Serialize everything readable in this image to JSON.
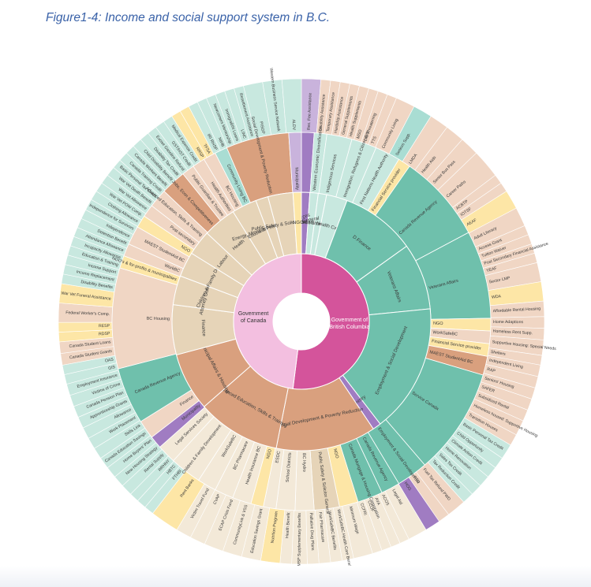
{
  "title": "Figure1-4: Income and social support system in B.C.",
  "colors": {
    "canada": "#f3bfe0",
    "bc": "#d4549b",
    "teal": "#6fc0ac",
    "teal_light": "#c8e8df",
    "peach": "#d9a07e",
    "peach_light": "#f0d6c4",
    "tan": "#e6d4b8",
    "tan_light": "#f3e9d8",
    "yellow": "#fde6a6",
    "purple": "#a07cc2",
    "purple_light": "#c9b3dc",
    "light_teal_outer": "#a9ddd3"
  },
  "center": {
    "canada": {
      "label": "Government of Canada",
      "value": 0.48
    },
    "bc": {
      "label": "Government of British Columbia",
      "value": 0.52
    }
  },
  "ministries": [
    {
      "label": "Municipal",
      "side": "canada",
      "value": 1.0,
      "color": "purple"
    },
    {
      "label": "National Defence",
      "side": "canada",
      "value": 1.0,
      "color": "teal_light"
    },
    {
      "label": "Royal Military College",
      "side": "canada",
      "value": 1.0,
      "color": "teal_light"
    },
    {
      "label": "Health Care",
      "side": "canada",
      "value": 2.5,
      "color": "teal_light"
    },
    {
      "label": "D.Finance",
      "side": "canada",
      "value": 9.0,
      "color": "teal"
    },
    {
      "label": "Veterans Affairs",
      "side": "canada",
      "value": 8.0,
      "color": "teal"
    },
    {
      "label": "Employment & Social Development",
      "side": "canada",
      "value": 15.5,
      "color": "teal"
    },
    {
      "label": "Ministry",
      "side": "bc",
      "value": 1.0,
      "color": "purple"
    },
    {
      "label": "Social Development & Poverty Reduction",
      "side": "bc",
      "value": 12.0,
      "color": "peach"
    },
    {
      "label": "Advanced Education, Skills & Training",
      "side": "bc",
      "value": 10.0,
      "color": "peach"
    },
    {
      "label": "Municipal Affairs & Housing",
      "side": "bc",
      "value": 7.0,
      "color": "peach"
    },
    {
      "label": "Finance",
      "side": "bc",
      "value": 6.0,
      "color": "tan"
    },
    {
      "label": "Attorney General",
      "side": "bc",
      "value": 3.5,
      "color": "tan"
    },
    {
      "label": "Children & Family Development",
      "side": "bc",
      "value": 3.0,
      "color": "tan"
    },
    {
      "label": "Labour",
      "side": "bc",
      "value": 3.0,
      "color": "tan"
    },
    {
      "label": "Health",
      "side": "bc",
      "value": 4.0,
      "color": "tan"
    },
    {
      "label": "Education",
      "side": "bc",
      "value": 3.0,
      "color": "tan"
    },
    {
      "label": "Energy, Mines & Petroleum Resources",
      "side": "bc",
      "value": 1.5,
      "color": "tan"
    },
    {
      "label": "Public Safety & Solicitor General",
      "side": "bc",
      "value": 3.0,
      "color": "tan"
    },
    {
      "label": "NGO",
      "side": "bc",
      "value": 1.0,
      "color": "yellow"
    }
  ],
  "agencies": [
    {
      "label": "",
      "value": 1.0,
      "color": "purple"
    },
    {
      "label": "Western Economic Diversification",
      "value": 1.0,
      "color": "teal_light"
    },
    {
      "label": "Indigenous Services",
      "value": 2.0,
      "color": "teal_light"
    },
    {
      "label": "Immigration, Refugees & Citizenship",
      "value": 2.0,
      "color": "teal_light"
    },
    {
      "label": "First Nations Health Authority",
      "value": 2.0,
      "color": "teal_light"
    },
    {
      "label": "Financial Service provider",
      "value": 1.0,
      "color": "yellow"
    },
    {
      "label": "Canada Revenue Agency",
      "value": 7.0,
      "color": "teal"
    },
    {
      "label": "Veterans Affairs",
      "value": 7.0,
      "color": "teal"
    },
    {
      "label": "NGO",
      "value": 1.0,
      "color": "yellow"
    },
    {
      "label": "WorkSafeBC",
      "value": 1.0,
      "color": "peach_light"
    },
    {
      "label": "Financial Service provider",
      "value": 1.0,
      "color": "yellow"
    },
    {
      "label": "MAEST StudentAid BC",
      "value": 1.5,
      "color": "peach"
    },
    {
      "label": "Service Canada",
      "value": 8.5,
      "color": "teal"
    },
    {
      "label": "Employment & Social Development",
      "value": 2.5,
      "color": "teal"
    },
    {
      "label": "Canada Revenue Agency",
      "value": 1.5,
      "color": "teal"
    },
    {
      "label": "Canada Mortgage & Housing Corporation",
      "value": 2.0,
      "color": "teal"
    },
    {
      "label": "NGO",
      "value": 1.5,
      "color": "yellow"
    },
    {
      "label": "Public Safety & Solicitor General",
      "value": 2.0,
      "color": "tan"
    },
    {
      "label": "BC Hydro",
      "value": 1.5,
      "color": "tan_light"
    },
    {
      "label": "School Districts",
      "value": 1.5,
      "color": "tan_light"
    },
    {
      "label": "ESDC",
      "value": 1.0,
      "color": "tan_light"
    },
    {
      "label": "NGO",
      "value": 1.0,
      "color": "yellow"
    },
    {
      "label": "Health Insurance BC",
      "value": 1.5,
      "color": "tan_light"
    },
    {
      "label": "BC Pharmacare",
      "value": 1.5,
      "color": "tan_light"
    },
    {
      "label": "WorkSafeBC",
      "value": 1.5,
      "color": "tan_light"
    },
    {
      "label": "Children & Family Development",
      "value": 2.5,
      "color": "tan_light"
    },
    {
      "label": "Legal Services Society",
      "value": 1.5,
      "color": "tan_light"
    },
    {
      "label": "Municipality",
      "value": 1.0,
      "color": "purple"
    },
    {
      "label": "Finance",
      "value": 1.5,
      "color": "peach_light"
    },
    {
      "label": "Canada Revenue Agency",
      "value": 4.5,
      "color": "teal"
    },
    {
      "label": "BC Housing",
      "value": 8.0,
      "color": "peach_light"
    },
    {
      "label": "NGO's & for-profits & municipalities",
      "value": 1.0,
      "color": "yellow"
    },
    {
      "label": "WorkBC",
      "value": 1.0,
      "color": "peach_light"
    },
    {
      "label": "MAEST StudentAid BC",
      "value": 1.5,
      "color": "peach_light"
    },
    {
      "label": "NGO",
      "value": 1.0,
      "color": "yellow"
    },
    {
      "label": "Post-secondary",
      "value": 1.0,
      "color": "peach_light"
    },
    {
      "label": "Advanced Education, Skills & Training",
      "value": 1.5,
      "color": "peach_light"
    },
    {
      "label": "Jobs, Econ & Competitiveness",
      "value": 2.0,
      "color": "peach"
    },
    {
      "label": "Public Guardian & Trustee",
      "value": 1.0,
      "color": "peach_light"
    },
    {
      "label": "Health Authorities",
      "value": 1.0,
      "color": "peach_light"
    },
    {
      "label": "BC Housing",
      "value": 1.0,
      "color": "peach_light"
    },
    {
      "label": "Community Living BC",
      "value": 1.0,
      "color": "light_teal_outer"
    },
    {
      "label": "Social Development & Poverty Reduction",
      "value": 5.0,
      "color": "peach"
    },
    {
      "label": "Municipality",
      "value": 1.0,
      "color": "purple_light"
    }
  ],
  "programs": [
    {
      "label": "Res. Fee Assistance",
      "value": 1.0,
      "color": "purple_light"
    },
    {
      "label": "Disability Assistance",
      "value": 0.5,
      "color": "peach_light"
    },
    {
      "label": "Temporary Assistance",
      "value": 0.5,
      "color": "peach_light"
    },
    {
      "label": "Hardship Assistance",
      "value": 0.5,
      "color": "peach_light"
    },
    {
      "label": "General Supplements",
      "value": 0.5,
      "color": "peach_light"
    },
    {
      "label": "Health Supplements",
      "value": 0.5,
      "color": "peach_light"
    },
    {
      "label": "MSO",
      "value": 0.5,
      "color": "peach_light"
    },
    {
      "label": "Life Threatening",
      "value": 0.5,
      "color": "peach_light"
    },
    {
      "label": "TTS",
      "value": 0.5,
      "color": "peach_light"
    },
    {
      "label": "Community Living",
      "value": 1.0,
      "color": "peach_light"
    },
    {
      "label": "Seniors Supp.",
      "value": 1.0,
      "color": "light_teal_outer"
    },
    {
      "label": "LMDA",
      "value": 1.0,
      "color": "peach_light"
    },
    {
      "label": "Health Aids",
      "value": 1.0,
      "color": "peach_light"
    },
    {
      "label": "Senior Bus Pass",
      "value": 1.0,
      "color": "peach_light"
    },
    {
      "label": "Career Paths",
      "value": 1.5,
      "color": "peach_light"
    },
    {
      "label": "ACBTP",
      "value": 0.5,
      "color": "peach_light"
    },
    {
      "label": "IOTSF",
      "value": 0.5,
      "color": "peach_light"
    },
    {
      "label": "AEAF",
      "value": 1.0,
      "color": "yellow"
    },
    {
      "label": "Adult Literacy",
      "value": 1.0,
      "color": "peach_light"
    },
    {
      "label": "Access Grant",
      "value": 0.5,
      "color": "peach_light"
    },
    {
      "label": "Tuition Waiver",
      "value": 0.5,
      "color": "peach_light"
    },
    {
      "label": "Post Secondary Financial Assistance",
      "value": 0.5,
      "color": "peach_light"
    },
    {
      "label": "YEAF",
      "value": 0.5,
      "color": "peach_light"
    },
    {
      "label": "Sector LMP",
      "value": 1.0,
      "color": "peach_light"
    },
    {
      "label": "WDA",
      "value": 1.0,
      "color": "yellow"
    },
    {
      "label": "Affordable Rental Housing",
      "value": 0.8,
      "color": "peach_light"
    },
    {
      "label": "Home Adaptions",
      "value": 0.6,
      "color": "peach_light"
    },
    {
      "label": "Homeless Rent Supp.",
      "value": 0.6,
      "color": "peach_light"
    },
    {
      "label": "Supportive Housing: Special Needs",
      "value": 0.8,
      "color": "peach_light"
    },
    {
      "label": "Shelters",
      "value": 0.5,
      "color": "peach_light"
    },
    {
      "label": "Independent Living",
      "value": 0.6,
      "color": "peach_light"
    },
    {
      "label": "RAP",
      "value": 0.6,
      "color": "peach_light"
    },
    {
      "label": "Seniors' Housing",
      "value": 0.6,
      "color": "peach_light"
    },
    {
      "label": "SAFER",
      "value": 0.6,
      "color": "peach_light"
    },
    {
      "label": "Subsidized Rental",
      "value": 0.6,
      "color": "peach_light"
    },
    {
      "label": "Homeless housed: Supportive Housing",
      "value": 0.8,
      "color": "peach_light"
    },
    {
      "label": "Transition Houses",
      "value": 0.6,
      "color": "peach_light"
    },
    {
      "label": "Basic Personal Tax Credit",
      "value": 0.8,
      "color": "teal_light"
    },
    {
      "label": "Child Opportunity",
      "value": 0.6,
      "color": "teal_light"
    },
    {
      "label": "Climate Action Credit",
      "value": 0.6,
      "color": "teal_light"
    },
    {
      "label": "Home Renovation",
      "value": 0.6,
      "color": "teal_light"
    },
    {
      "label": "Sales Tax Credit",
      "value": 0.6,
      "color": "teal_light"
    },
    {
      "label": "Tax Reduction Credit",
      "value": 0.6,
      "color": "teal_light"
    },
    {
      "label": "Fuel Tax Refund PWD",
      "value": 1.0,
      "color": "peach_light"
    },
    {
      "label": "PTD",
      "value": 0.6,
      "color": "peach_light"
    },
    {
      "label": "HOG",
      "value": 0.8,
      "color": "purple"
    },
    {
      "label": "Legal Aid",
      "value": 1.0,
      "color": "tan_light"
    },
    {
      "label": "ACOS",
      "value": 0.5,
      "color": "tan_light"
    },
    {
      "label": "AYA",
      "value": 0.5,
      "color": "tan_light"
    },
    {
      "label": "CCOF",
      "value": 0.5,
      "color": "tan_light"
    },
    {
      "label": "CCFRI",
      "value": 0.5,
      "color": "tan_light"
    },
    {
      "label": "Minimum Wage",
      "value": 1.0,
      "color": "tan_light"
    },
    {
      "label": "WorkSafeBC Health Care Benefit",
      "value": 0.6,
      "color": "tan_light"
    },
    {
      "label": "WorkSafeBC Benefits",
      "value": 0.6,
      "color": "tan_light"
    },
    {
      "label": "Fair Pharmacare",
      "value": 0.6,
      "color": "tan_light"
    },
    {
      "label": "Palliative Drug Plans",
      "value": 0.6,
      "color": "tan_light"
    },
    {
      "label": "MSP Supplementary Benefits",
      "value": 0.8,
      "color": "tan_light"
    },
    {
      "label": "Health Benefit",
      "value": 0.6,
      "color": "tan_light"
    },
    {
      "label": "Nutrition Program",
      "value": 1.0,
      "color": "yellow"
    },
    {
      "label": "Education Savings Grant",
      "value": 1.0,
      "color": "tan_light"
    },
    {
      "label": "CommunityLink & VSS",
      "value": 1.0,
      "color": "tan_light"
    },
    {
      "label": "ECAP Crisis Fund",
      "value": 1.0,
      "color": "tan_light"
    },
    {
      "label": "CVAP",
      "value": 0.8,
      "color": "tan_light"
    },
    {
      "label": "Victim Travel Fund",
      "value": 0.8,
      "color": "tan_light"
    },
    {
      "label": "Rent Banks",
      "value": 1.5,
      "color": "yellow"
    },
    {
      "label": "FTHBI",
      "value": 0.5,
      "color": "teal_light"
    },
    {
      "label": "HBTC",
      "value": 0.5,
      "color": "teal_light"
    },
    {
      "label": "RRHNY",
      "value": 0.5,
      "color": "teal_light"
    },
    {
      "label": "Rental Supply",
      "value": 0.6,
      "color": "teal_light"
    },
    {
      "label": "New Housing Strategy",
      "value": 0.6,
      "color": "teal_light"
    },
    {
      "label": "Home Buyers' Plan",
      "value": 0.6,
      "color": "teal_light"
    },
    {
      "label": "Canada Education Savings",
      "value": 0.6,
      "color": "teal_light"
    },
    {
      "label": "Skills Link",
      "value": 0.6,
      "color": "teal_light"
    },
    {
      "label": "Work Placement",
      "value": 0.6,
      "color": "teal_light"
    },
    {
      "label": "Allowance",
      "value": 0.6,
      "color": "teal_light"
    },
    {
      "label": "Apprenticeship Grants",
      "value": 0.6,
      "color": "teal_light"
    },
    {
      "label": "Canada Pension Plan",
      "value": 0.6,
      "color": "teal_light"
    },
    {
      "label": "Victims of Crime",
      "value": 0.6,
      "color": "teal_light"
    },
    {
      "label": "Employment Insurance",
      "value": 0.6,
      "color": "teal_light"
    },
    {
      "label": "GIS",
      "value": 0.5,
      "color": "teal_light"
    },
    {
      "label": "OAS",
      "value": 0.5,
      "color": "teal_light"
    },
    {
      "label": "Canada Student Grants",
      "value": 0.6,
      "color": "peach_light"
    },
    {
      "label": "Canada Student Loans",
      "value": 0.6,
      "color": "peach_light"
    },
    {
      "label": "RDSP",
      "value": 0.5,
      "color": "yellow"
    },
    {
      "label": "RESP",
      "value": 0.5,
      "color": "yellow"
    },
    {
      "label": "Federal Worker's Comp.",
      "value": 1.0,
      "color": "peach_light"
    },
    {
      "label": "War Vet Funeral Assistance",
      "value": 1.0,
      "color": "yellow"
    },
    {
      "label": "Disability Benefits",
      "value": 0.5,
      "color": "teal_light"
    },
    {
      "label": "Income Replacement",
      "value": 0.5,
      "color": "teal_light"
    },
    {
      "label": "Income Support",
      "value": 0.5,
      "color": "teal_light"
    },
    {
      "label": "Education & Training",
      "value": 0.5,
      "color": "teal_light"
    },
    {
      "label": "Incapacity Allowance",
      "value": 0.5,
      "color": "teal_light"
    },
    {
      "label": "Attendance Allowance",
      "value": 0.5,
      "color": "teal_light"
    },
    {
      "label": "Detention Benefit",
      "value": 0.5,
      "color": "teal_light"
    },
    {
      "label": "Independence",
      "value": 0.5,
      "color": "teal_light"
    },
    {
      "label": "Independence for Survivors",
      "value": 0.6,
      "color": "teal_light"
    },
    {
      "label": "Clothing Allowance",
      "value": 0.5,
      "color": "teal_light"
    },
    {
      "label": "War Vet POW Comp.",
      "value": 0.5,
      "color": "teal_light"
    },
    {
      "label": "War Vet Allowance",
      "value": 0.5,
      "color": "teal_light"
    },
    {
      "label": "War Vet Death Benefit",
      "value": 0.5,
      "color": "teal_light"
    },
    {
      "label": "Basic Personal Tax Credit",
      "value": 0.5,
      "color": "teal_light"
    },
    {
      "label": "Canada Training Credit",
      "value": 0.5,
      "color": "teal_light"
    },
    {
      "label": "Canada Workers Benefit",
      "value": 0.5,
      "color": "teal_light"
    },
    {
      "label": "Child Disability Benefit",
      "value": 0.5,
      "color": "teal_light"
    },
    {
      "label": "Disability Tax Credit",
      "value": 0.5,
      "color": "teal_light"
    },
    {
      "label": "Excise Gasoline Refund",
      "value": 0.5,
      "color": "teal_light"
    },
    {
      "label": "GST/HST Credit",
      "value": 0.5,
      "color": "teal_light"
    },
    {
      "label": "Medical Expense Credit",
      "value": 0.5,
      "color": "teal_light"
    },
    {
      "label": "RRSP",
      "value": 0.5,
      "color": "yellow"
    },
    {
      "label": "TFSA",
      "value": 0.5,
      "color": "yellow"
    },
    {
      "label": "IRI RHSP",
      "value": 0.5,
      "color": "teal_light"
    },
    {
      "label": "NIHB",
      "value": 0.5,
      "color": "teal_light"
    },
    {
      "label": "Newcomers Mentorship",
      "value": 0.5,
      "color": "teal_light"
    },
    {
      "label": "ImmigraBIN Loans",
      "value": 0.5,
      "color": "teal_light"
    },
    {
      "label": "LINC",
      "value": 0.5,
      "color": "teal_light"
    },
    {
      "label": "Resettlement Assistance",
      "value": 0.5,
      "color": "teal_light"
    },
    {
      "label": "PISGP",
      "value": 1.0,
      "color": "teal_light"
    },
    {
      "label": "Western Business Service Network",
      "value": 1.0,
      "color": "teal_light"
    },
    {
      "label": "ALDV",
      "value": 1.0,
      "color": "teal_light"
    }
  ]
}
